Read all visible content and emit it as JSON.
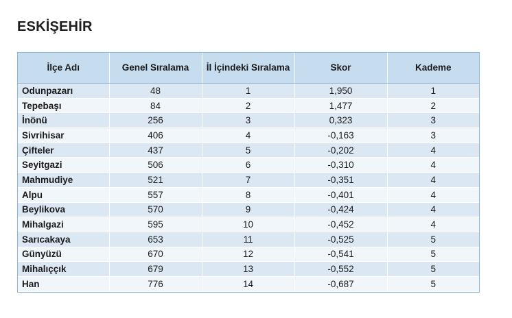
{
  "title": "ESKİŞEHİR",
  "table": {
    "headers": [
      "İlçe Adı",
      "Genel Sıralama",
      "İl İçindeki Sıralama",
      "Skor",
      "Kademe"
    ],
    "rows": [
      [
        "Odunpazarı",
        "48",
        "1",
        "1,950",
        "1"
      ],
      [
        "Tepebaşı",
        "84",
        "2",
        "1,477",
        "2"
      ],
      [
        "İnönü",
        "256",
        "3",
        "0,323",
        "3"
      ],
      [
        "Sivrihisar",
        "406",
        "4",
        "-0,163",
        "3"
      ],
      [
        "Çifteler",
        "437",
        "5",
        "-0,202",
        "4"
      ],
      [
        "Seyitgazi",
        "506",
        "6",
        "-0,310",
        "4"
      ],
      [
        "Mahmudiye",
        "521",
        "7",
        "-0,351",
        "4"
      ],
      [
        "Alpu",
        "557",
        "8",
        "-0,401",
        "4"
      ],
      [
        "Beylikova",
        "570",
        "9",
        "-0,424",
        "4"
      ],
      [
        "Mihalgazi",
        "595",
        "10",
        "-0,452",
        "4"
      ],
      [
        "Sarıcakaya",
        "653",
        "11",
        "-0,525",
        "5"
      ],
      [
        "Günyüzü",
        "670",
        "12",
        "-0,541",
        "5"
      ],
      [
        "Mihalıççık",
        "679",
        "13",
        "-0,552",
        "5"
      ],
      [
        "Han",
        "776",
        "14",
        "-0,687",
        "5"
      ]
    ]
  },
  "colors": {
    "header_bg": "#c6dcef",
    "row_odd_bg": "#dbe8f4",
    "row_even_bg": "#f1f6fb",
    "border": "#8fb6d6"
  }
}
